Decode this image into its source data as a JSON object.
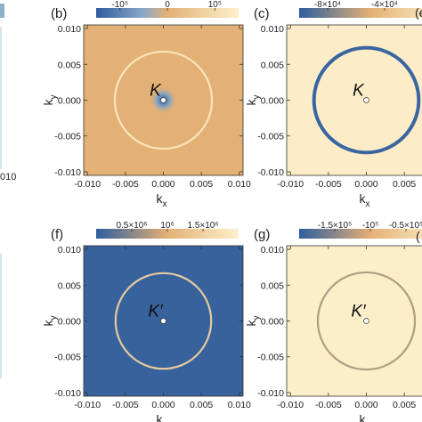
{
  "chart_data": [
    {
      "type": "heatmap",
      "panel_label": "(b)",
      "marker_label": "K",
      "marker_prime": "",
      "colorbar": {
        "tick_labels": [
          "-10⁵",
          "0",
          "10⁵"
        ],
        "tick_values": [
          -100000,
          0,
          100000
        ],
        "range": [
          -150000,
          150000
        ],
        "stops": [
          {
            "value": -150000,
            "color": "#2e5e9e"
          },
          {
            "value": -50000,
            "color": "#8aa8c8"
          },
          {
            "value": 0,
            "color": "#e3b074"
          },
          {
            "value": 150000,
            "color": "#fdf0cc"
          }
        ]
      },
      "background_value": 2000,
      "ring": {
        "k_radius": 0.0064,
        "value": 130000
      },
      "center_feature": "negative-dip",
      "xlabel": "k",
      "xlabel_sub": "x",
      "ylabel": "k",
      "ylabel_sub": "y",
      "xlim": [
        -0.0105,
        0.0105
      ],
      "ylim": [
        -0.0105,
        0.0105
      ],
      "x_ticks": [
        "-0.010",
        "-0.005",
        "0.000",
        "0.005",
        "0.010"
      ],
      "y_ticks": [
        "0.010",
        "0.005",
        "0.000",
        "-0.005",
        "-0.010"
      ]
    },
    {
      "type": "heatmap",
      "panel_label": "(c)",
      "marker_label": "K",
      "marker_prime": "",
      "colorbar": {
        "tick_labels": [
          "-8×10⁴",
          "-4×10⁴",
          "0"
        ],
        "tick_values": [
          -80000,
          -40000,
          0
        ],
        "range": [
          -100000,
          0
        ],
        "stops": [
          {
            "value": -100000,
            "color": "#2e5e9e"
          },
          {
            "value": -50000,
            "color": "#e3b074"
          },
          {
            "value": 0,
            "color": "#fdf0cc"
          }
        ]
      },
      "background_value": -2000,
      "ring": {
        "k_radius": 0.0069,
        "value": -100000
      },
      "center_feature": "none",
      "xlabel": "k",
      "xlabel_sub": "x",
      "ylabel": "k",
      "ylabel_sub": "y",
      "xlim": [
        -0.0105,
        0.0105
      ],
      "ylim": [
        -0.0105,
        0.0105
      ],
      "x_ticks": [
        "-0.010",
        "-0.005",
        "0.000",
        "0.005",
        "0.010"
      ],
      "y_ticks": [
        "0.010",
        "0.005",
        "0.000",
        "-0.005",
        "-0.010"
      ]
    },
    {
      "type": "heatmap",
      "panel_label": "(f)",
      "marker_label": "K",
      "marker_prime": "′",
      "colorbar": {
        "tick_labels": [
          "0.5×10⁶",
          "10⁶",
          "1.5×10⁶"
        ],
        "tick_values": [
          500000,
          1000000,
          1500000
        ],
        "range": [
          0,
          2000000
        ],
        "stops": [
          {
            "value": 0,
            "color": "#2e5e9e"
          },
          {
            "value": 1000000,
            "color": "#e3b074"
          },
          {
            "value": 2000000,
            "color": "#fdf0cc"
          }
        ]
      },
      "background_value": 50000,
      "ring": {
        "k_radius": 0.0063,
        "value": 1500000
      },
      "center_feature": "none",
      "xlabel": "k",
      "xlabel_sub": "x",
      "ylabel": "k",
      "ylabel_sub": "y",
      "xlim": [
        -0.0105,
        0.0105
      ],
      "ylim": [
        -0.0105,
        0.0105
      ],
      "x_ticks": [
        "-0.010",
        "-0.005",
        "0.000",
        "0.005",
        "0.010"
      ],
      "y_ticks": [
        "0.010",
        "0.005",
        "0.000",
        "-0.005",
        "-0.010"
      ]
    },
    {
      "type": "heatmap",
      "panel_label": "(g)",
      "marker_label": "K",
      "marker_prime": "′",
      "colorbar": {
        "tick_labels": [
          "-1.5×10⁵",
          "-10⁵",
          "-0.5×10⁵"
        ],
        "tick_values": [
          -150000,
          -100000,
          -50000
        ],
        "range": [
          -200000,
          0
        ],
        "stops": [
          {
            "value": -200000,
            "color": "#2e5e9e"
          },
          {
            "value": -100000,
            "color": "#e3b074"
          },
          {
            "value": 0,
            "color": "#fdf0cc"
          }
        ]
      },
      "background_value": -3000,
      "ring": {
        "k_radius": 0.0064,
        "value": -130000
      },
      "center_feature": "none",
      "xlabel": "k",
      "xlabel_sub": "x",
      "ylabel": "k",
      "ylabel_sub": "y",
      "xlim": [
        -0.0105,
        0.0105
      ],
      "ylim": [
        -0.0105,
        0.0105
      ],
      "x_ticks": [
        "-0.010",
        "-0.005",
        "0.000",
        "0.005",
        "0.010"
      ],
      "y_ticks": [
        "0.010",
        "0.005",
        "0.000",
        "-0.005",
        "-0.010"
      ]
    }
  ],
  "edge_fragments": {
    "left_top": "010",
    "right_top": "(e",
    "left_bottom": "",
    "right_bottom": "("
  }
}
